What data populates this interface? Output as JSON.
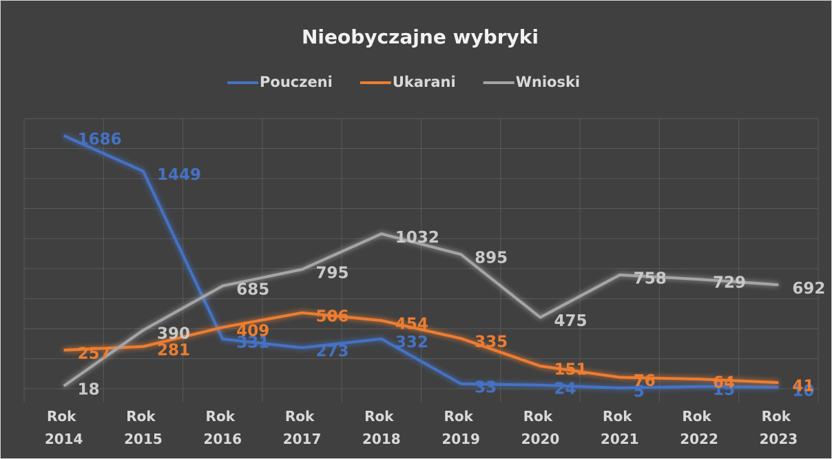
{
  "chart_data": {
    "type": "line",
    "title": "Nieobyczajne wybryki",
    "categories": [
      "Rok 2014",
      "Rok 2015",
      "Rok 2016",
      "Rok 2017",
      "Rok 2018",
      "Rok 2019",
      "Rok 2020",
      "Rok 2021",
      "Rok 2022",
      "Rok 2023"
    ],
    "series": [
      {
        "name": "Pouczeni",
        "color": "#4472c4",
        "values": [
          1686,
          1449,
          331,
          273,
          332,
          33,
          24,
          5,
          15,
          10
        ]
      },
      {
        "name": "Ukarani",
        "color": "#ed7d31",
        "values": [
          257,
          281,
          409,
          506,
          454,
          335,
          151,
          76,
          64,
          41
        ]
      },
      {
        "name": "Wnioski",
        "color": "#a5a5a5",
        "values": [
          18,
          390,
          685,
          795,
          1032,
          895,
          475,
          758,
          729,
          692
        ]
      }
    ],
    "ylim": [
      0,
      1800
    ],
    "yticks": [
      0,
      200,
      400,
      600,
      800,
      1000,
      1200,
      1400,
      1600,
      1800
    ],
    "grid": true,
    "legend": "top"
  }
}
